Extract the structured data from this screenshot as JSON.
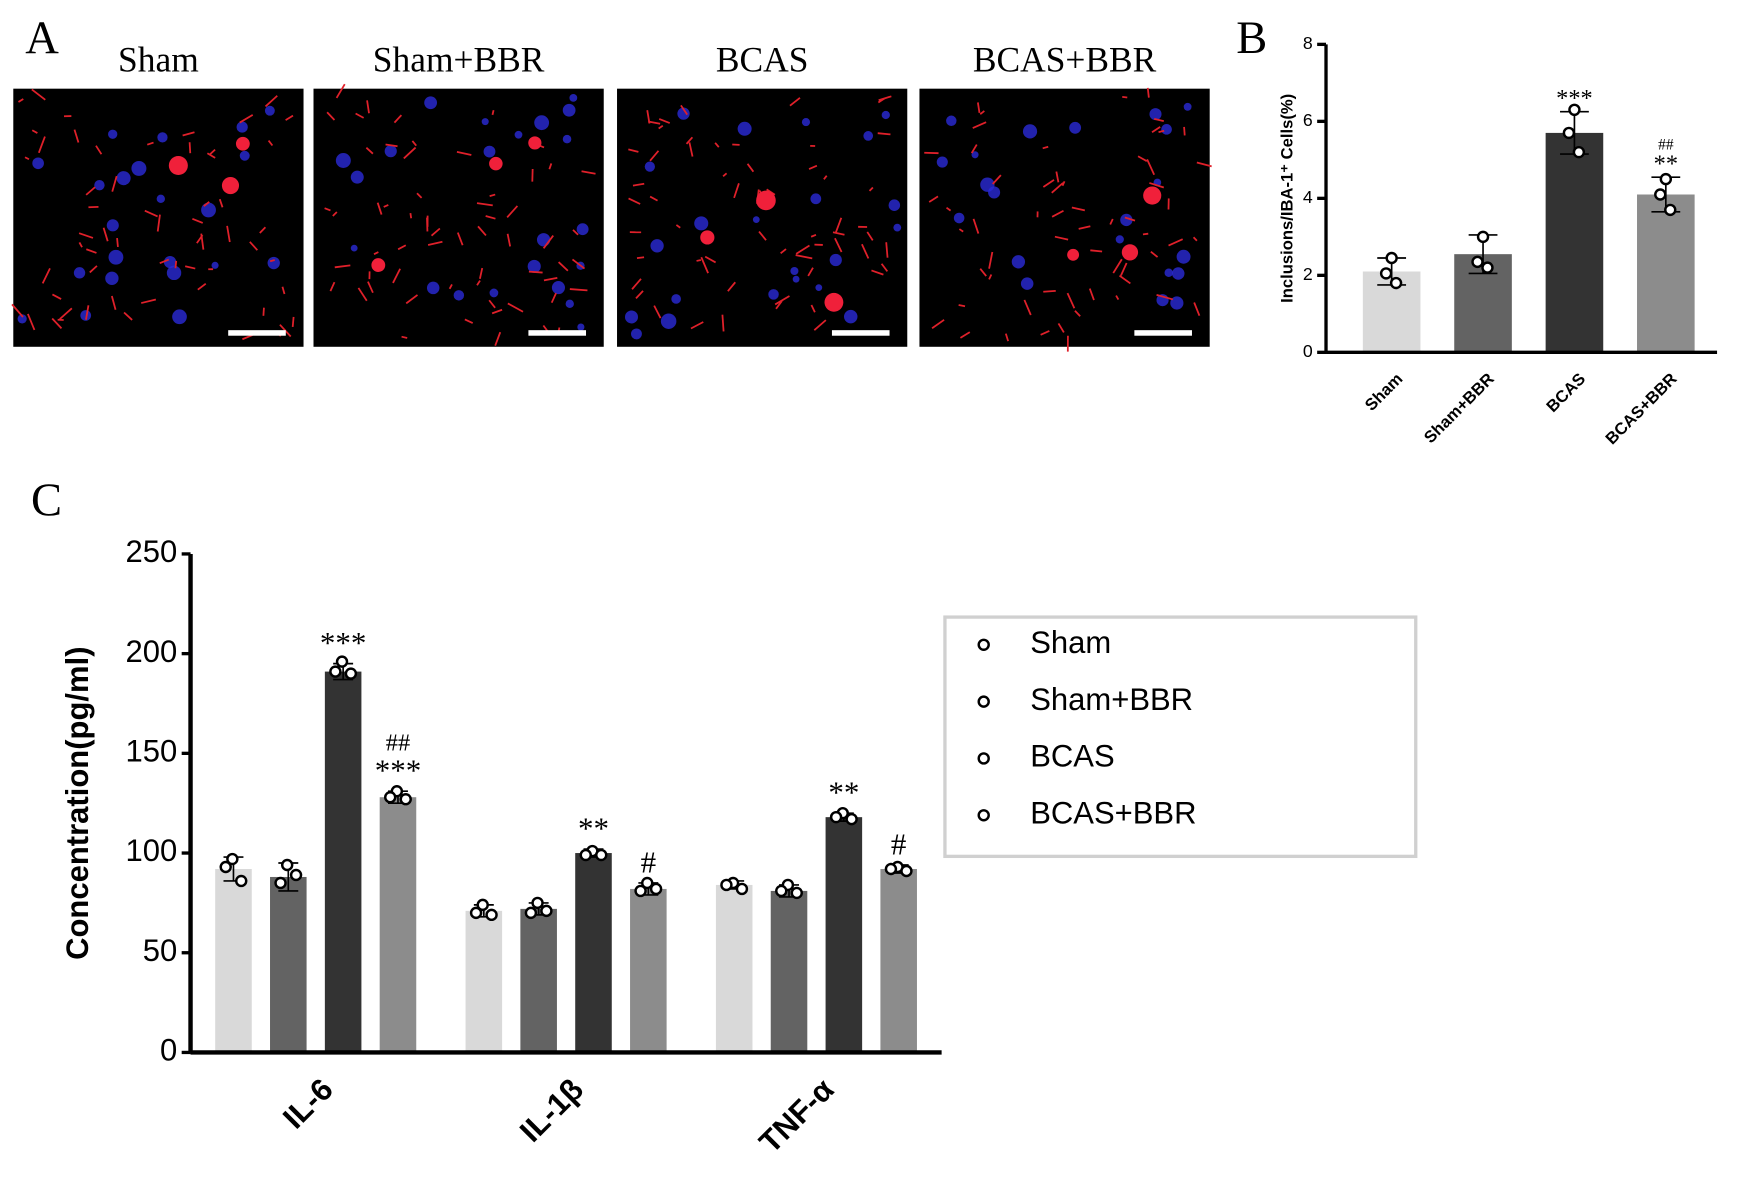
{
  "panel_a": {
    "letter": "A",
    "titles": [
      "Sham",
      "Sham+BBR",
      "BCAS",
      "BCAS+BBR"
    ]
  },
  "chart_data": [
    {
      "type": "bar",
      "letter": "B",
      "y_label": "Inclusions/IBA-1⁺ Cells(%)",
      "categories": [
        "Sham",
        "Sham+BBR",
        "BCAS",
        "BCAS+BBR"
      ],
      "values": [
        2.1,
        2.55,
        5.7,
        4.1
      ],
      "errors": [
        0.35,
        0.5,
        0.55,
        0.45
      ],
      "points": [
        [
          2.45,
          2.05,
          1.8
        ],
        [
          3.0,
          2.35,
          2.2
        ],
        [
          6.3,
          5.7,
          5.2
        ],
        [
          4.5,
          4.1,
          3.7
        ]
      ],
      "annotations": [
        [],
        [],
        [
          "***"
        ],
        [
          "##",
          "**"
        ]
      ],
      "colors": [
        "#d9d9d9",
        "#636363",
        "#333333",
        "#8c8c8c"
      ],
      "ylim": [
        0,
        8
      ],
      "yticks": [
        0,
        2,
        4,
        6,
        8
      ]
    },
    {
      "type": "grouped-bar",
      "letter": "C",
      "y_label": "Concentration(pg/ml)",
      "categories": [
        "IL-6",
        "IL-1β",
        "TNF-α"
      ],
      "series": [
        {
          "name": "Sham",
          "color": "#d9d9d9",
          "values": [
            92,
            71,
            84
          ],
          "errors": [
            6,
            3,
            2
          ],
          "points": [
            [
              97,
              93,
              86
            ],
            [
              74,
              70,
              69
            ],
            [
              85,
              84,
              82
            ]
          ],
          "annotations": [
            [],
            [],
            []
          ]
        },
        {
          "name": "Sham+BBR",
          "color": "#636363",
          "values": [
            88,
            72,
            81
          ],
          "errors": [
            7,
            3,
            3
          ],
          "points": [
            [
              94,
              85,
              89
            ],
            [
              75,
              70,
              71
            ],
            [
              84,
              81,
              80
            ]
          ],
          "annotations": [
            [],
            [],
            []
          ]
        },
        {
          "name": "BCAS",
          "color": "#333333",
          "values": [
            191,
            100,
            118
          ],
          "errors": [
            4,
            2,
            2
          ],
          "points": [
            [
              196,
              191,
              190
            ],
            [
              101,
              99,
              99
            ],
            [
              120,
              118,
              117
            ]
          ],
          "annotations": [
            [
              "***"
            ],
            [
              "**"
            ],
            [
              "**"
            ]
          ]
        },
        {
          "name": "BCAS+BBR",
          "color": "#8c8c8c",
          "values": [
            128,
            82,
            92
          ],
          "errors": [
            3,
            3,
            2
          ],
          "points": [
            [
              131,
              128,
              127
            ],
            [
              85,
              81,
              82
            ],
            [
              93,
              92,
              91
            ]
          ],
          "annotations": [
            [
              "##",
              "***"
            ],
            [
              "#"
            ],
            [
              "#"
            ]
          ]
        }
      ],
      "ylim": [
        0,
        250
      ],
      "yticks": [
        0,
        50,
        100,
        150,
        200,
        250
      ],
      "legend": "right"
    }
  ]
}
